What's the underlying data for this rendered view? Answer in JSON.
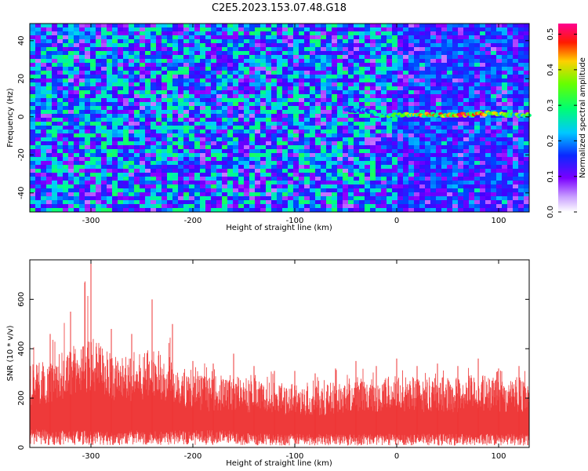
{
  "title": "C2E5.2023.153.07.48.G18",
  "colors": {
    "snr_trace": "#ee3333",
    "colormap": [
      "#ffffff",
      "#9400ff",
      "#4400ff",
      "#0044ff",
      "#00ccff",
      "#00ff88",
      "#55ff00",
      "#ffdd00",
      "#ff2200",
      "#ff0099"
    ]
  },
  "chart_data": [
    {
      "type": "heatmap",
      "xlabel": "Height of straight line (km)",
      "ylabel": "Frequency (Hz)",
      "xlim": [
        -360,
        130
      ],
      "ylim": [
        -50,
        49
      ],
      "xticks": [
        -300,
        -200,
        -100,
        0,
        100
      ],
      "xtick_labels": [
        "-300",
        "-200",
        "-100",
        "0",
        "100"
      ],
      "yticks": [
        -40,
        -20,
        0,
        20,
        40
      ],
      "ytick_labels": [
        "-40",
        "-20",
        "0",
        "20",
        "40"
      ],
      "grid": false,
      "colorbar": {
        "label": "Normalized spectral amplitude",
        "range": [
          0,
          0.53
        ],
        "ticks": [
          0,
          0.1,
          0.2,
          0.3,
          0.4,
          0.5
        ],
        "tick_labels": [
          "0.0",
          "0.1",
          "0.2",
          "0.3",
          "0.4",
          "0.5"
        ]
      },
      "signal_trace": {
        "description": "narrow high-amplitude band near 0 Hz",
        "x": [
          -50,
          -30,
          -15,
          0,
          25,
          50,
          75,
          90,
          110,
          130
        ],
        "frequency": [
          4,
          3,
          1,
          1,
          1,
          1,
          1,
          2,
          1,
          1
        ],
        "amplitude": [
          0.15,
          0.2,
          0.25,
          0.3,
          0.35,
          0.4,
          0.45,
          0.35,
          0.3,
          0.3
        ]
      }
    },
    {
      "type": "area",
      "xlabel": "Height of straight line (km)",
      "ylabel": "SNR (10 * v/v)",
      "xlim": [
        -360,
        130
      ],
      "ylim": [
        0,
        760
      ],
      "xticks": [
        -300,
        -200,
        -100,
        0,
        100
      ],
      "xtick_labels": [
        "-300",
        "-200",
        "-100",
        "0",
        "100"
      ],
      "yticks": [
        0,
        200,
        400,
        600
      ],
      "ytick_labels": [
        "0",
        "200",
        "400",
        "600"
      ],
      "grid": false,
      "series": [
        {
          "x": [
            -360,
            -340,
            -320,
            -300,
            -280,
            -260,
            -240,
            -220,
            -200,
            -180,
            -160,
            -140,
            -120,
            -100,
            -80,
            -60,
            -40,
            -20,
            0,
            20,
            40,
            60,
            80,
            100,
            120,
            130
          ],
          "y_max": [
            410,
            460,
            550,
            760,
            480,
            460,
            600,
            500,
            350,
            340,
            380,
            330,
            310,
            310,
            300,
            320,
            350,
            330,
            360,
            330,
            340,
            330,
            360,
            320,
            330,
            320
          ],
          "y_typical": [
            280,
            300,
            340,
            380,
            320,
            300,
            340,
            300,
            250,
            240,
            250,
            230,
            220,
            220,
            210,
            225,
            240,
            230,
            250,
            235,
            240,
            235,
            250,
            230,
            240,
            230
          ],
          "y_min": [
            60,
            50,
            50,
            50,
            45,
            50,
            50,
            50,
            50,
            50,
            50,
            40,
            40,
            40,
            40,
            40,
            40,
            40,
            40,
            40,
            40,
            40,
            40,
            40,
            40,
            40
          ]
        }
      ]
    }
  ]
}
